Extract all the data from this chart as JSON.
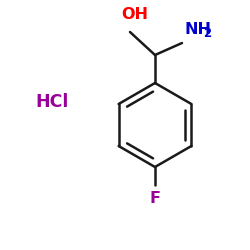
{
  "background_color": "#ffffff",
  "bond_color": "#1a1a1a",
  "oh_color": "#ff0000",
  "nh2_color": "#0000cc",
  "hcl_color": "#990099",
  "f_color": "#990099",
  "oh_label": "OH",
  "hcl_label": "HCl",
  "f_label": "F",
  "figsize": [
    2.5,
    2.5
  ],
  "dpi": 100
}
